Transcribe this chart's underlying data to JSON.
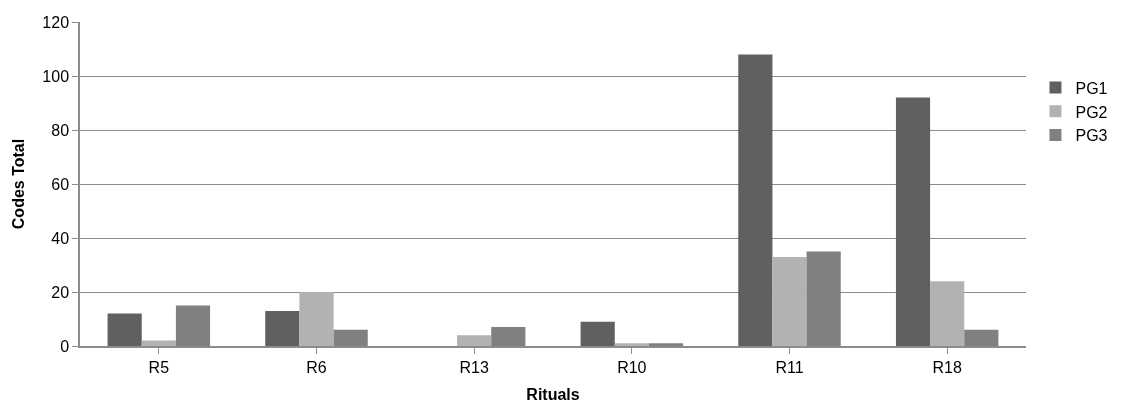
{
  "chart_data": {
    "type": "bar",
    "xlabel": "Rituals",
    "ylabel": "Codes Total",
    "categories": [
      "R5",
      "R6",
      "R13",
      "R10",
      "R11",
      "R18"
    ],
    "series": [
      {
        "name": "PG1",
        "color": "#606060",
        "values": [
          12,
          13,
          0,
          9,
          108,
          92
        ]
      },
      {
        "name": "PG2",
        "color": "#b2b2b2",
        "values": [
          2,
          20,
          4,
          1,
          33,
          24
        ]
      },
      {
        "name": "PG3",
        "color": "#808080",
        "values": [
          15,
          6,
          7,
          1,
          35,
          6
        ]
      }
    ],
    "ylim": [
      0,
      120
    ],
    "yticks": [
      0,
      20,
      40,
      60,
      80,
      100,
      120
    ],
    "grid": "y",
    "legend": "right"
  }
}
